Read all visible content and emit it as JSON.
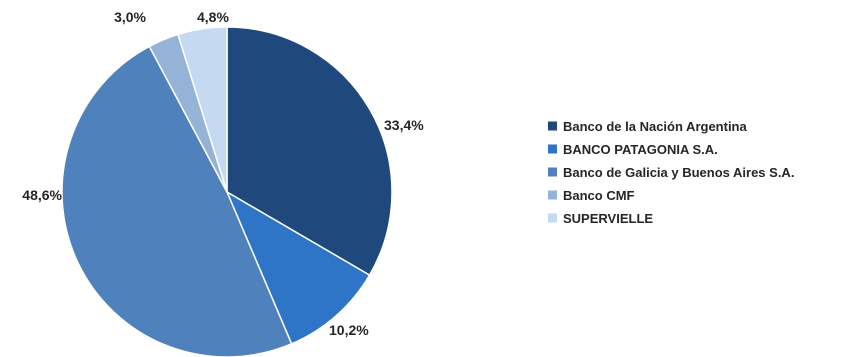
{
  "chart_data": {
    "type": "pie",
    "legend_position": "right",
    "start_angle": "12 o'clock, clockwise",
    "categories": [
      "Banco de la Nación Argentina",
      "BANCO PATAGONIA S.A.",
      "Banco de Galicia y Buenos Aires S.A.",
      "Banco CMF",
      "SUPERVIELLE"
    ],
    "values": [
      33.4,
      10.2,
      48.6,
      3.0,
      4.8
    ],
    "labels": [
      "33,4%",
      "10,2%",
      "48,6%",
      "3,0%",
      "4,8%"
    ],
    "colors": [
      "#1f497d",
      "#2e75c7",
      "#4f81bd",
      "#95b3d7",
      "#c5d9f1"
    ]
  }
}
